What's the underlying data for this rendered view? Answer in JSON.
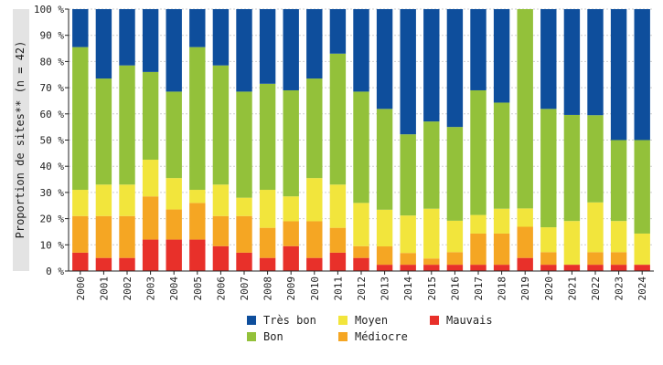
{
  "chart_data": {
    "type": "bar",
    "stacked": true,
    "ylabel": "Proportion de sites** (n = 42)",
    "ylim": [
      0,
      100
    ],
    "y_ticks": [
      0,
      10,
      20,
      30,
      40,
      50,
      60,
      70,
      80,
      90,
      100
    ],
    "y_tick_suffix": " %",
    "grid": true,
    "legend_position": "bottom",
    "categories": [
      "2000",
      "2001",
      "2002",
      "2003",
      "2004",
      "2005",
      "2006",
      "2007",
      "2008",
      "2009",
      "2010",
      "2011",
      "2012",
      "2013",
      "2014",
      "2015",
      "2016",
      "2017",
      "2018",
      "2019",
      "2020",
      "2021",
      "2022",
      "2023",
      "2024"
    ],
    "series": [
      {
        "name": "Mauvais",
        "color": "#e8302a",
        "values": [
          7,
          5,
          5,
          12,
          12,
          12,
          9.5,
          7,
          5,
          9.5,
          5,
          7,
          5,
          2.4,
          2.4,
          2.4,
          2.4,
          2.4,
          2.4,
          5,
          2.4,
          2.4,
          2.4,
          2.4,
          2.4
        ]
      },
      {
        "name": "Médiocre",
        "color": "#f5a623",
        "values": [
          14,
          16,
          16,
          16.5,
          11.5,
          14,
          11.5,
          14,
          11.5,
          9.5,
          14,
          9.5,
          4.5,
          7,
          4.5,
          2.4,
          4.8,
          11.9,
          11.9,
          11.9,
          4.8,
          0,
          4.8,
          4.8,
          0
        ]
      },
      {
        "name": "Moyen",
        "color": "#f2e53c",
        "values": [
          10,
          12,
          12,
          14,
          12,
          5,
          12,
          7,
          14.5,
          9.5,
          16.5,
          16.5,
          16.5,
          14,
          14.3,
          19,
          12,
          7.1,
          9.5,
          7,
          9.5,
          16.7,
          19,
          11.9,
          11.9
        ]
      },
      {
        "name": "Bon",
        "color": "#93c13a",
        "values": [
          54.5,
          40.5,
          45.5,
          33.5,
          33,
          54.5,
          45.5,
          40.5,
          40.5,
          40.5,
          38,
          50,
          42.5,
          38.5,
          31,
          33.3,
          35.8,
          47.6,
          40.5,
          76.1,
          45.2,
          40.5,
          33.3,
          30.9,
          35.7
        ]
      },
      {
        "name": "Très bon",
        "color": "#0e4e9c",
        "values": [
          14.5,
          26.5,
          21.5,
          24,
          31.5,
          14.5,
          21.5,
          31.5,
          28.5,
          31,
          26.5,
          17,
          31.5,
          38.1,
          47.8,
          42.9,
          45,
          31,
          35.7,
          0,
          38.1,
          40.4,
          40.5,
          50,
          50
        ]
      }
    ],
    "legend_entries": [
      "Très bon",
      "Moyen",
      "Mauvais",
      "Bon",
      "Médiocre"
    ]
  }
}
